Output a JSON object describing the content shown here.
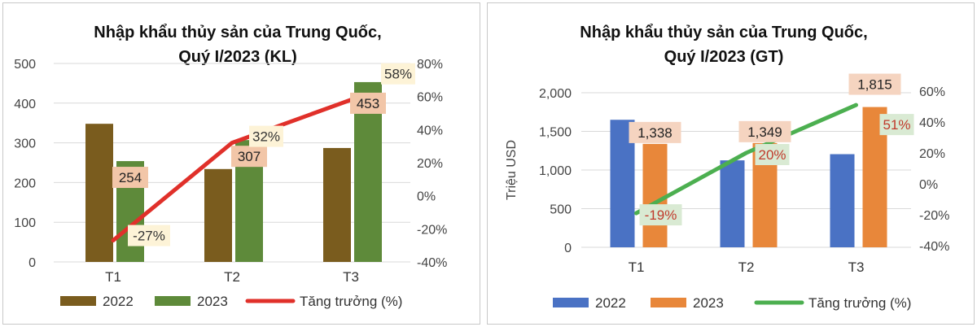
{
  "chart_data": [
    {
      "type": "bar",
      "title": [
        "Nhập khẩu thủy sản của Trung Quốc,",
        "Quý I/2023 (KL)"
      ],
      "categories": [
        "T1",
        "T2",
        "T3"
      ],
      "ylabel": "",
      "ylim": [
        0,
        500
      ],
      "yticks": [
        "0",
        "100",
        "200",
        "300",
        "400",
        "500"
      ],
      "y2lim": [
        -40,
        80
      ],
      "y2ticks": [
        "-40%",
        "-20%",
        "0%",
        "20%",
        "40%",
        "60%",
        "80%"
      ],
      "series": [
        {
          "name": "2022",
          "kind": "bar",
          "color": "#7a5c1e",
          "values": [
            348,
            234,
            287
          ]
        },
        {
          "name": "2023",
          "kind": "bar",
          "color": "#5e8a3a",
          "values": [
            254,
            307,
            453
          ],
          "labels": [
            "254",
            "307",
            "453"
          ]
        },
        {
          "name": "Tăng trưởng (%)",
          "kind": "line",
          "axis": "secondary",
          "color": "#e0302a",
          "values": [
            -27,
            32,
            58
          ],
          "labels": [
            "-27%",
            "32%",
            "58%"
          ]
        }
      ],
      "grid": true,
      "legend": "bottom"
    },
    {
      "type": "bar",
      "title": [
        "Nhập khẩu thủy sản của Trung Quốc,",
        "Quý I/2023 (GT)"
      ],
      "categories": [
        "T1",
        "T2",
        "T3"
      ],
      "ylabel": "Triệu USD",
      "ylim": [
        0,
        2000
      ],
      "yticks": [
        "0",
        "500",
        "1,000",
        "1,500",
        "2,000"
      ],
      "y2lim": [
        -40,
        60
      ],
      "y2ticks": [
        "-40%",
        "-20%",
        "0%",
        "20%",
        "40%",
        "60%"
      ],
      "series": [
        {
          "name": "2022",
          "kind": "bar",
          "color": "#4a72c4",
          "values": [
            1650,
            1125,
            1205
          ]
        },
        {
          "name": "2023",
          "kind": "bar",
          "color": "#e8873a",
          "values": [
            1338,
            1349,
            1815
          ],
          "labels": [
            "1,338",
            "1,349",
            "1,815"
          ]
        },
        {
          "name": "Tăng trưởng (%)",
          "kind": "line",
          "axis": "secondary",
          "color": "#4caf50",
          "values": [
            -19,
            20,
            51
          ],
          "labels": [
            "-19%",
            "20%",
            "51%"
          ]
        }
      ],
      "grid": true,
      "legend": "bottom"
    }
  ]
}
